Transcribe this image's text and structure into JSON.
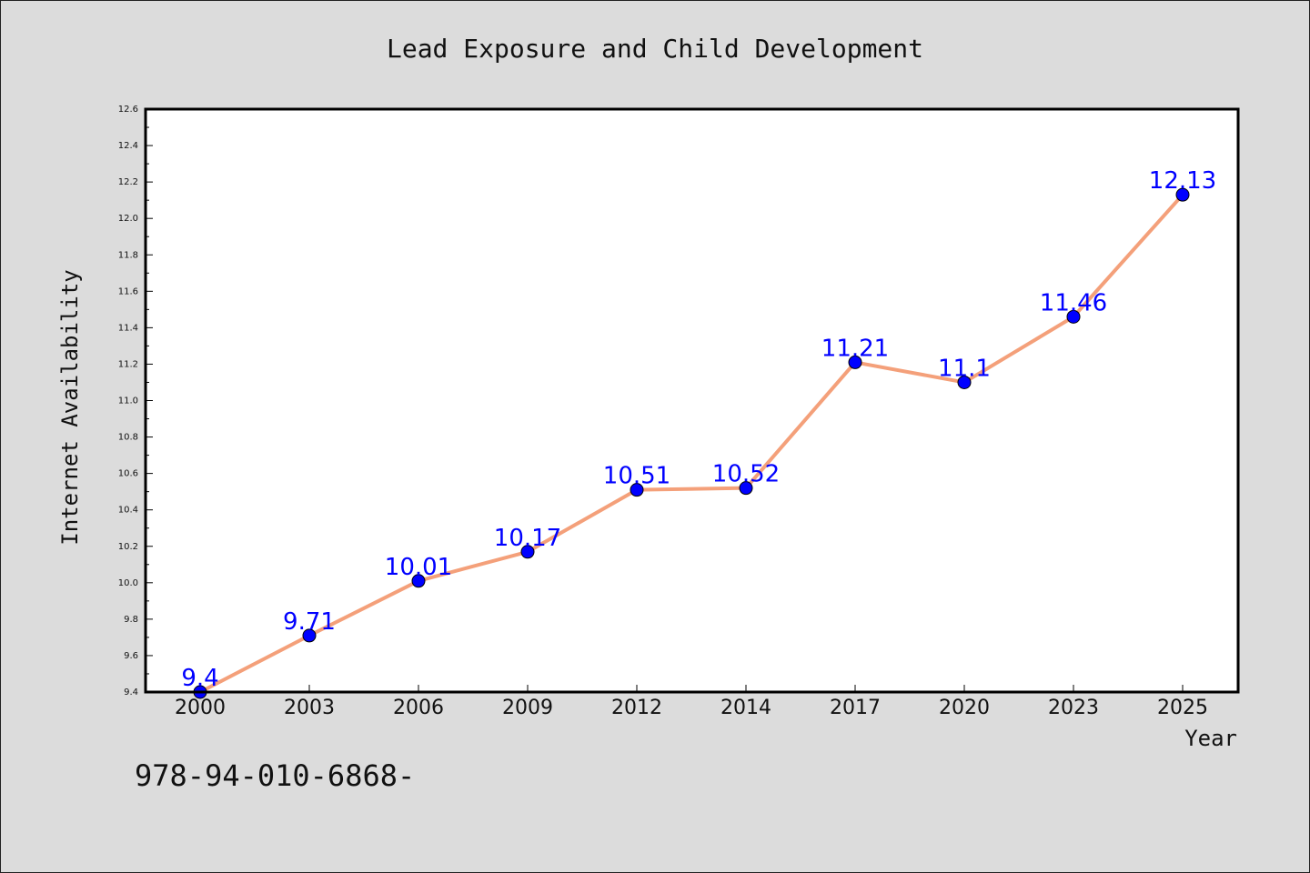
{
  "chart_data": {
    "type": "line",
    "title": "Lead Exposure and Child Development",
    "xlabel": "Year",
    "ylabel": "Internet Availability",
    "categories": [
      "2000",
      "2003",
      "2006",
      "2009",
      "2012",
      "2014",
      "2017",
      "2020",
      "2023",
      "2025"
    ],
    "series": [
      {
        "values": [
          9.4,
          9.71,
          10.01,
          10.17,
          10.51,
          10.52,
          11.21,
          11.1,
          11.46,
          12.13
        ],
        "data_labels": [
          "9.4",
          "9.71",
          "10.01",
          "10.17",
          "10.51",
          "10.52",
          "11.21",
          "11.1",
          "11.46",
          "12.13"
        ]
      }
    ],
    "ylim": [
      9.4,
      12.6
    ],
    "yticks": [
      "9.4",
      "9.6",
      "9.8",
      "10.0",
      "10.2",
      "10.4",
      "10.6",
      "10.8",
      "11.0",
      "11.2",
      "11.4",
      "11.6",
      "11.8",
      "12.0",
      "12.2",
      "12.4",
      "12.6"
    ],
    "grid": false,
    "legend": "none",
    "colors": {
      "line": "#f4a07a",
      "marker": "#0000ff",
      "label": "#0000ff",
      "background": "#dcdcdc",
      "plot_background": "#ffffff"
    }
  },
  "annotation": "978-94-010-6868-"
}
